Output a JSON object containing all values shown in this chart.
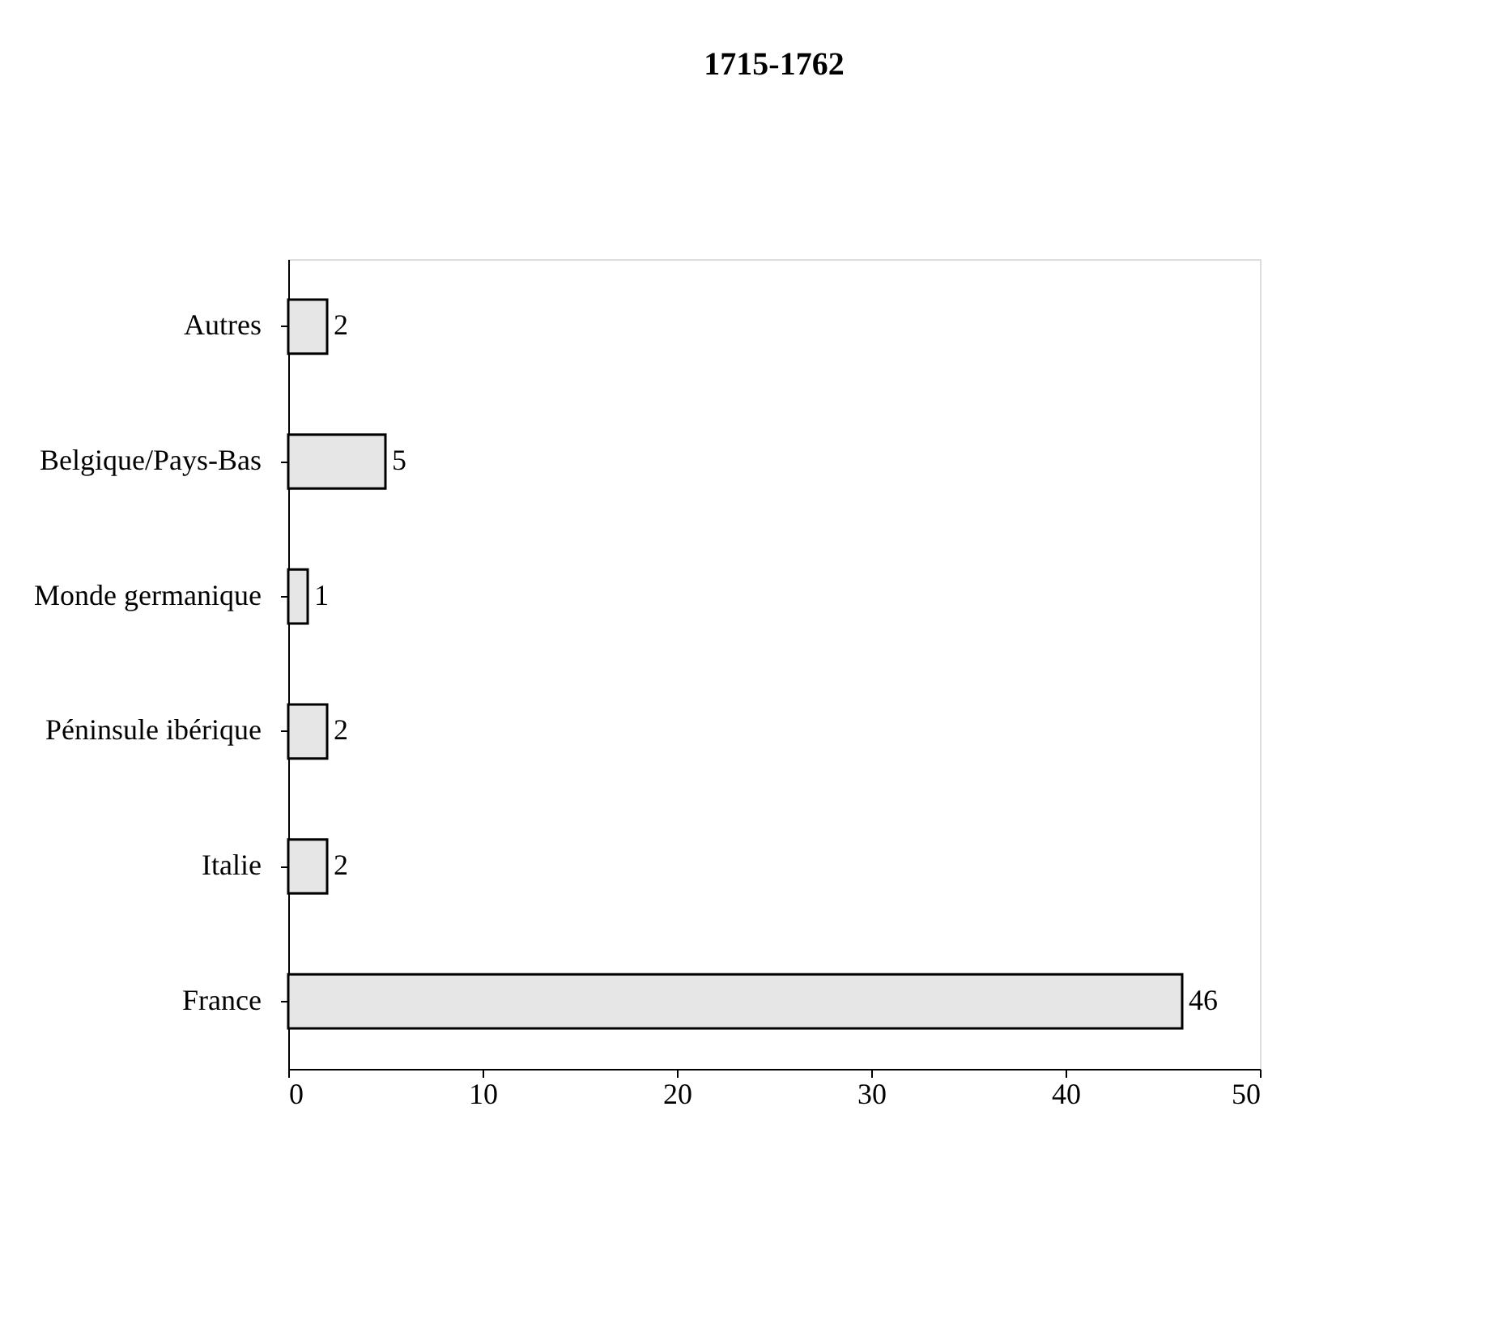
{
  "chart_data": {
    "type": "bar",
    "orientation": "horizontal",
    "title": "1715-1762",
    "categories": [
      "Autres",
      "Belgique/Pays-Bas",
      "Monde germanique",
      "Péninsule ibérique",
      "Italie",
      "France"
    ],
    "values": [
      2,
      5,
      1,
      2,
      2,
      46
    ],
    "color": "#e6e6e6",
    "xlim": [
      0,
      50
    ],
    "xticks": [
      0,
      10,
      20,
      30,
      40,
      50
    ],
    "grid": false,
    "data_labels": true
  }
}
